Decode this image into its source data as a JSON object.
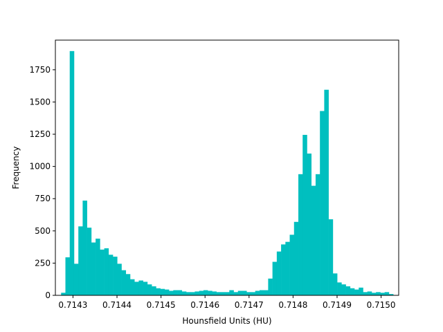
{
  "chart_data": {
    "type": "bar",
    "title": "",
    "xlabel": "Hounsfield Units (HU)",
    "ylabel": "Frequency",
    "xlim": [
      0.71426,
      0.71504
    ],
    "ylim": [
      0,
      1980
    ],
    "x_ticks": [
      0.7143,
      0.7144,
      0.7145,
      0.7146,
      0.7147,
      0.7148,
      0.7149,
      0.715
    ],
    "x_tick_labels": [
      "0.7143",
      "0.7144",
      "0.7145",
      "0.7146",
      "0.7147",
      "0.7148",
      "0.7149",
      "0.7150"
    ],
    "y_ticks": [
      0,
      250,
      500,
      750,
      1000,
      1250,
      1500,
      1750
    ],
    "y_tick_labels": [
      "0",
      "250",
      "500",
      "750",
      "1000",
      "1250",
      "1500",
      "1750"
    ],
    "grid": false,
    "bar_color": "#00bfbf",
    "bins_start": 0.714273,
    "bin_width": 9.8e-06,
    "values": [
      20,
      295,
      1895,
      245,
      535,
      735,
      525,
      410,
      440,
      355,
      365,
      315,
      300,
      245,
      195,
      165,
      125,
      105,
      115,
      105,
      85,
      70,
      55,
      50,
      45,
      35,
      40,
      40,
      30,
      25,
      25,
      30,
      35,
      40,
      35,
      30,
      25,
      25,
      25,
      40,
      25,
      35,
      35,
      25,
      25,
      35,
      40,
      40,
      130,
      260,
      340,
      395,
      415,
      470,
      570,
      940,
      1245,
      1100,
      850,
      940,
      1430,
      1595,
      590,
      170,
      100,
      85,
      70,
      55,
      45,
      60,
      25,
      30,
      20,
      25,
      20,
      25,
      10
    ]
  }
}
